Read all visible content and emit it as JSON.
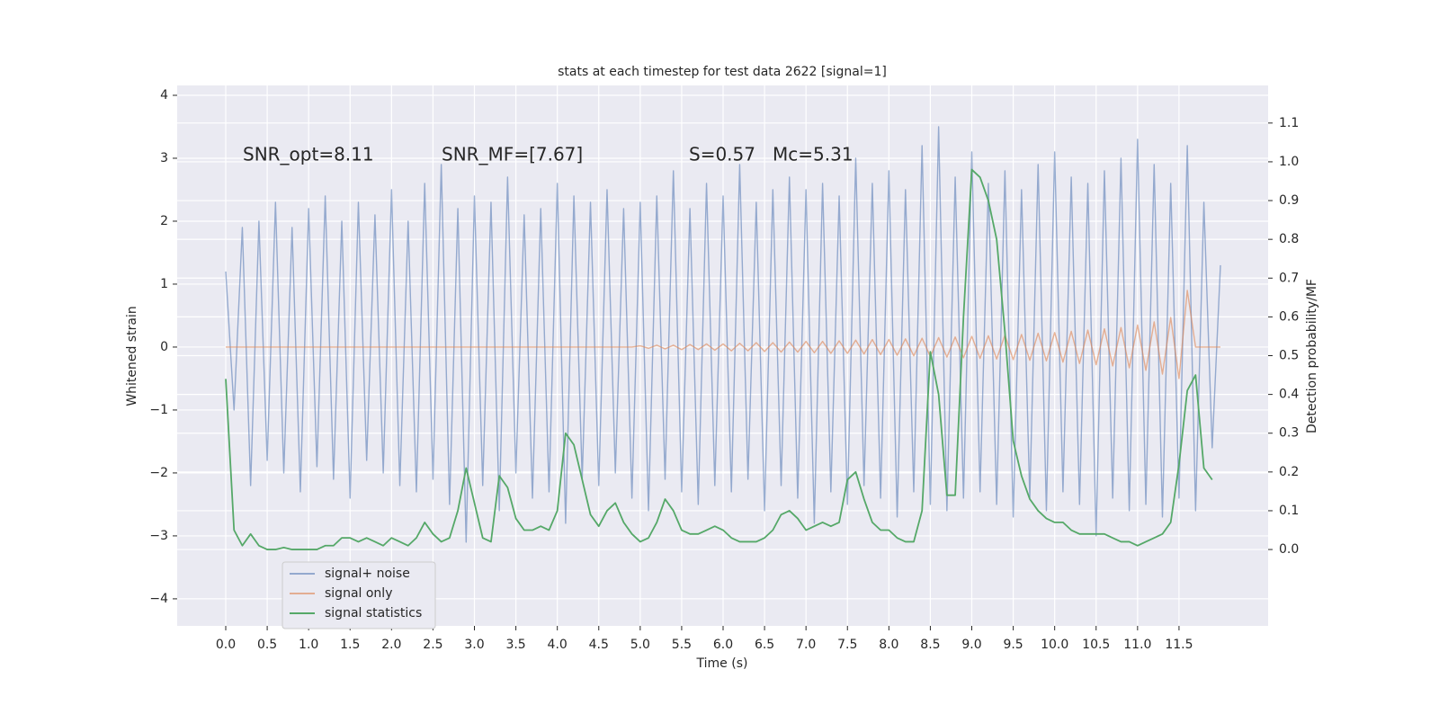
{
  "chart_data": {
    "type": "line",
    "title": "stats at each timestep for test data 2622 [signal=1]",
    "xlabel": "Time (s)",
    "ylabel": "Whitened strain",
    "y2label": "Detection probability/MF",
    "annotations": [
      "SNR_opt=8.11",
      "SNR_MF=[7.67]",
      "S=0.57",
      "Mc=5.31"
    ],
    "x": [
      0,
      0.1,
      0.2,
      0.3,
      0.4,
      0.5,
      0.6,
      0.7,
      0.8,
      0.9,
      1,
      1.1,
      1.2,
      1.3,
      1.4,
      1.5,
      1.6,
      1.7,
      1.8,
      1.9,
      2,
      2.1,
      2.2,
      2.3,
      2.4,
      2.5,
      2.6,
      2.7,
      2.8,
      2.9,
      3,
      3.1,
      3.2,
      3.3,
      3.4,
      3.5,
      3.6,
      3.7,
      3.8,
      3.9,
      4,
      4.1,
      4.2,
      4.3,
      4.4,
      4.5,
      4.6,
      4.7,
      4.8,
      4.9,
      5,
      5.1,
      5.2,
      5.3,
      5.4,
      5.5,
      5.6,
      5.7,
      5.8,
      5.9,
      6,
      6.1,
      6.2,
      6.3,
      6.4,
      6.5,
      6.6,
      6.7,
      6.8,
      6.9,
      7,
      7.1,
      7.2,
      7.3,
      7.4,
      7.5,
      7.6,
      7.7,
      7.8,
      7.9,
      8,
      8.1,
      8.2,
      8.3,
      8.4,
      8.5,
      8.6,
      8.7,
      8.8,
      8.9,
      9,
      9.1,
      9.2,
      9.3,
      9.4,
      9.5,
      9.6,
      9.7,
      9.8,
      9.9,
      10,
      10.1,
      10.2,
      10.3,
      10.4,
      10.5,
      10.6,
      10.7,
      10.8,
      10.9,
      11,
      11.1,
      11.2,
      11.3,
      11.4,
      11.5,
      11.6,
      11.7,
      11.8,
      11.9,
      12
    ],
    "series": [
      {
        "name": "signal+ noise",
        "color": "#4c72b0",
        "alpha": 0.55,
        "values": [
          1.2,
          -1.0,
          1.9,
          -2.2,
          2.0,
          -1.8,
          2.3,
          -2.0,
          1.9,
          -2.3,
          2.2,
          -1.9,
          2.4,
          -2.1,
          2.0,
          -2.4,
          2.3,
          -1.8,
          2.1,
          -2.0,
          2.5,
          -2.2,
          2.0,
          -2.3,
          2.6,
          -2.1,
          2.9,
          -2.5,
          2.2,
          -3.1,
          2.4,
          -2.2,
          2.3,
          -2.6,
          2.7,
          -2.0,
          2.1,
          -2.4,
          2.2,
          -2.3,
          2.6,
          -2.8,
          2.4,
          -2.1,
          2.3,
          -2.2,
          2.5,
          -2.0,
          2.2,
          -2.4,
          2.3,
          -2.6,
          2.4,
          -2.1,
          2.8,
          -2.3,
          2.2,
          -2.5,
          2.6,
          -2.2,
          2.4,
          -2.3,
          2.9,
          -2.1,
          2.3,
          -2.6,
          2.5,
          -2.2,
          2.7,
          -2.4,
          2.5,
          -2.8,
          2.6,
          -2.3,
          2.4,
          -2.5,
          3.0,
          -2.2,
          2.6,
          -2.4,
          2.8,
          -2.7,
          2.5,
          -2.3,
          3.2,
          -2.5,
          3.5,
          -2.6,
          2.7,
          -2.4,
          3.1,
          -2.3,
          2.6,
          -2.5,
          2.8,
          -2.7,
          2.5,
          -2.4,
          2.9,
          -2.6,
          3.1,
          -2.3,
          2.7,
          -2.5,
          2.6,
          -3.0,
          2.8,
          -2.4,
          3.0,
          -2.6,
          3.3,
          -2.5,
          2.9,
          -2.7,
          2.6,
          -2.4,
          3.2,
          -2.6,
          2.3,
          -1.6,
          1.3
        ]
      },
      {
        "name": "signal only",
        "color": "#dd8452",
        "alpha": 0.6,
        "values": [
          0,
          0,
          0,
          0,
          0,
          0,
          0,
          0,
          0,
          0,
          0,
          0,
          0,
          0,
          0,
          0,
          0,
          0,
          0,
          0,
          0,
          0,
          0,
          0,
          0,
          0,
          0,
          0,
          0,
          0,
          0,
          0,
          0,
          0,
          0,
          0,
          0,
          0,
          0,
          0,
          0,
          0,
          0,
          0,
          0,
          0,
          0,
          0,
          0,
          0,
          0.02,
          -0.02,
          0.03,
          -0.03,
          0.03,
          -0.04,
          0.04,
          -0.04,
          0.05,
          -0.05,
          0.05,
          -0.06,
          0.06,
          -0.06,
          0.07,
          -0.07,
          0.07,
          -0.08,
          0.08,
          -0.08,
          0.09,
          -0.09,
          0.09,
          -0.1,
          0.1,
          -0.1,
          0.11,
          -0.11,
          0.12,
          -0.12,
          0.12,
          -0.13,
          0.13,
          -0.14,
          0.14,
          -0.15,
          0.15,
          -0.16,
          0.16,
          -0.17,
          0.17,
          -0.18,
          0.18,
          -0.19,
          0.19,
          -0.2,
          0.2,
          -0.21,
          0.22,
          -0.22,
          0.23,
          -0.24,
          0.25,
          -0.26,
          0.27,
          -0.28,
          0.29,
          -0.3,
          0.31,
          -0.33,
          0.35,
          -0.37,
          0.4,
          -0.43,
          0.47,
          -0.5,
          0.9,
          0,
          0,
          0,
          0
        ]
      },
      {
        "name": "signal statistics",
        "color": "#55a868",
        "alpha": 1,
        "axis": "y2",
        "values": [
          0.44,
          0.05,
          0.01,
          0.04,
          0.01,
          0.0,
          0.0,
          0.005,
          0.0,
          0.0,
          0.0,
          0.0,
          0.01,
          0.01,
          0.03,
          0.03,
          0.02,
          0.03,
          0.02,
          0.01,
          0.03,
          0.02,
          0.01,
          0.03,
          0.07,
          0.04,
          0.02,
          0.03,
          0.1,
          0.21,
          0.12,
          0.03,
          0.02,
          0.19,
          0.16,
          0.08,
          0.05,
          0.05,
          0.06,
          0.05,
          0.1,
          0.3,
          0.27,
          0.18,
          0.09,
          0.06,
          0.1,
          0.12,
          0.07,
          0.04,
          0.02,
          0.03,
          0.07,
          0.13,
          0.1,
          0.05,
          0.04,
          0.04,
          0.05,
          0.06,
          0.05,
          0.03,
          0.02,
          0.02,
          0.02,
          0.03,
          0.05,
          0.09,
          0.1,
          0.08,
          0.05,
          0.06,
          0.07,
          0.06,
          0.07,
          0.18,
          0.2,
          0.13,
          0.07,
          0.05,
          0.05,
          0.03,
          0.02,
          0.02,
          0.1,
          0.51,
          0.4,
          0.14,
          0.14,
          0.6,
          0.98,
          0.96,
          0.9,
          0.8,
          0.56,
          0.28,
          0.19,
          0.13,
          0.1,
          0.08,
          0.07,
          0.07,
          0.05,
          0.04,
          0.04,
          0.04,
          0.04,
          0.03,
          0.02,
          0.02,
          0.01,
          0.02,
          0.03,
          0.04,
          0.07,
          0.22,
          0.41,
          0.45,
          0.21,
          0.18,
          null
        ]
      }
    ],
    "xlim": [
      -0.586,
      12.575
    ],
    "ylim": [
      -4.43,
      4.157
    ],
    "y2lim": [
      -0.197,
      1.197
    ],
    "xticks": [
      {
        "value": 0,
        "label": "0.0"
      },
      0.5,
      {
        "value": 1,
        "label": "1.0"
      },
      1.5,
      {
        "value": 2,
        "label": "2.0"
      },
      2.5,
      {
        "value": 3,
        "label": "3.0"
      },
      3.5,
      {
        "value": 4,
        "label": "4.0"
      },
      4.5,
      {
        "value": 5,
        "label": "5.0"
      },
      5.5,
      {
        "value": 6,
        "label": "6.0"
      },
      6.5,
      {
        "value": 7,
        "label": "7.0"
      },
      7.5,
      {
        "value": 8,
        "label": "8.0"
      },
      8.5,
      {
        "value": 9,
        "label": "9.0"
      },
      9.5,
      {
        "value": 10,
        "label": "10.0"
      },
      10.5,
      {
        "value": 11,
        "label": "11.0"
      },
      11.5
    ],
    "yticks": [
      {
        "value": -4,
        "label": "−4"
      },
      {
        "value": -3,
        "label": "−3"
      },
      {
        "value": -2,
        "label": "−2"
      },
      {
        "value": -1,
        "label": "−1"
      },
      0,
      1,
      2,
      3,
      4
    ],
    "y2ticks": [
      {
        "value": 0,
        "label": "0.0"
      },
      0.1,
      0.2,
      0.3,
      0.4,
      0.5,
      0.6,
      0.7,
      0.8,
      0.9,
      {
        "value": 1,
        "label": "1.0"
      },
      1.1
    ],
    "grid": true,
    "legend": "lower left"
  }
}
